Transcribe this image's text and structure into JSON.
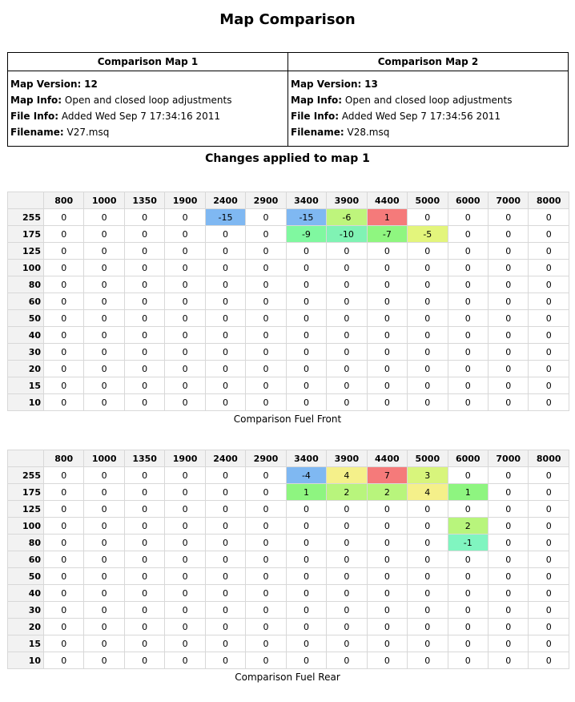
{
  "title": "Map Comparison",
  "info": {
    "headers": [
      "Comparison Map 1",
      "Comparison Map 2"
    ],
    "maps": [
      {
        "version_label": "Map Version:",
        "version": "12",
        "info_label": "Map Info:",
        "info": "Open and closed loop adjustments",
        "file_info_label": "File Info:",
        "file_info": "Added Wed Sep 7 17:34:16 2011",
        "filename_label": "Filename:",
        "filename": "V27.msq"
      },
      {
        "version_label": "Map Version:",
        "version": "13",
        "info_label": "Map Info:",
        "info": "Open and closed loop adjustments",
        "file_info_label": "File Info:",
        "file_info": "Added Wed Sep 7 17:34:56 2011",
        "filename_label": "Filename:",
        "filename": "V28.msq"
      }
    ]
  },
  "changes_heading": "Changes applied to map 1",
  "colors": {
    "-15": "#7fb8f2",
    "-10": "#80f3b4",
    "-9": "#80f8a0",
    "-7": "#8ff680",
    "-6": "#bef57c",
    "-5": "#e3f57c",
    "-4": "#7fb8f2",
    "-1": "#80f5c0",
    "1": "#f57a7a",
    "1r": "#8ef580",
    "2": "#b8f57c",
    "3": "#d8f57c",
    "4": "#f5f08a",
    "7": "#f57a7a"
  },
  "tables": [
    {
      "name": "front",
      "caption": "Comparison Fuel Front",
      "columns": [
        "800",
        "1000",
        "1350",
        "1900",
        "2400",
        "2900",
        "3400",
        "3900",
        "4400",
        "5000",
        "6000",
        "7000",
        "8000"
      ],
      "rows": [
        {
          "label": "255",
          "values": [
            "0",
            "0",
            "0",
            "0",
            "-15",
            "0",
            "-15",
            "-6",
            "1",
            "0",
            "0",
            "0",
            "0"
          ],
          "colors": [
            "",
            "",
            "",
            "",
            "#7fb8f2",
            "",
            "#7fb8f2",
            "#bef57c",
            "#f57a7a",
            "",
            "",
            "",
            ""
          ]
        },
        {
          "label": "175",
          "values": [
            "0",
            "0",
            "0",
            "0",
            "0",
            "0",
            "-9",
            "-10",
            "-7",
            "-5",
            "0",
            "0",
            "0"
          ],
          "colors": [
            "",
            "",
            "",
            "",
            "",
            "",
            "#80f8a0",
            "#80f3b4",
            "#8ff680",
            "#e3f57c",
            "",
            "",
            ""
          ]
        },
        {
          "label": "125",
          "values": [
            "0",
            "0",
            "0",
            "0",
            "0",
            "0",
            "0",
            "0",
            "0",
            "0",
            "0",
            "0",
            "0"
          ],
          "colors": []
        },
        {
          "label": "100",
          "values": [
            "0",
            "0",
            "0",
            "0",
            "0",
            "0",
            "0",
            "0",
            "0",
            "0",
            "0",
            "0",
            "0"
          ],
          "colors": []
        },
        {
          "label": "80",
          "values": [
            "0",
            "0",
            "0",
            "0",
            "0",
            "0",
            "0",
            "0",
            "0",
            "0",
            "0",
            "0",
            "0"
          ],
          "colors": []
        },
        {
          "label": "60",
          "values": [
            "0",
            "0",
            "0",
            "0",
            "0",
            "0",
            "0",
            "0",
            "0",
            "0",
            "0",
            "0",
            "0"
          ],
          "colors": []
        },
        {
          "label": "50",
          "values": [
            "0",
            "0",
            "0",
            "0",
            "0",
            "0",
            "0",
            "0",
            "0",
            "0",
            "0",
            "0",
            "0"
          ],
          "colors": []
        },
        {
          "label": "40",
          "values": [
            "0",
            "0",
            "0",
            "0",
            "0",
            "0",
            "0",
            "0",
            "0",
            "0",
            "0",
            "0",
            "0"
          ],
          "colors": []
        },
        {
          "label": "30",
          "values": [
            "0",
            "0",
            "0",
            "0",
            "0",
            "0",
            "0",
            "0",
            "0",
            "0",
            "0",
            "0",
            "0"
          ],
          "colors": []
        },
        {
          "label": "20",
          "values": [
            "0",
            "0",
            "0",
            "0",
            "0",
            "0",
            "0",
            "0",
            "0",
            "0",
            "0",
            "0",
            "0"
          ],
          "colors": []
        },
        {
          "label": "15",
          "values": [
            "0",
            "0",
            "0",
            "0",
            "0",
            "0",
            "0",
            "0",
            "0",
            "0",
            "0",
            "0",
            "0"
          ],
          "colors": []
        },
        {
          "label": "10",
          "values": [
            "0",
            "0",
            "0",
            "0",
            "0",
            "0",
            "0",
            "0",
            "0",
            "0",
            "0",
            "0",
            "0"
          ],
          "colors": []
        }
      ]
    },
    {
      "name": "rear",
      "caption": "Comparison Fuel Rear",
      "columns": [
        "800",
        "1000",
        "1350",
        "1900",
        "2400",
        "2900",
        "3400",
        "3900",
        "4400",
        "5000",
        "6000",
        "7000",
        "8000"
      ],
      "rows": [
        {
          "label": "255",
          "values": [
            "0",
            "0",
            "0",
            "0",
            "0",
            "0",
            "-4",
            "4",
            "7",
            "3",
            "0",
            "0",
            "0"
          ],
          "colors": [
            "",
            "",
            "",
            "",
            "",
            "",
            "#7fb8f2",
            "#f5f08a",
            "#f57a7a",
            "#d8f57c",
            "",
            "",
            ""
          ]
        },
        {
          "label": "175",
          "values": [
            "0",
            "0",
            "0",
            "0",
            "0",
            "0",
            "1",
            "2",
            "2",
            "4",
            "1",
            "0",
            "0"
          ],
          "colors": [
            "",
            "",
            "",
            "",
            "",
            "",
            "#8ef580",
            "#b8f57c",
            "#b8f57c",
            "#f5f08a",
            "#8ef580",
            "",
            ""
          ]
        },
        {
          "label": "125",
          "values": [
            "0",
            "0",
            "0",
            "0",
            "0",
            "0",
            "0",
            "0",
            "0",
            "0",
            "0",
            "0",
            "0"
          ],
          "colors": []
        },
        {
          "label": "100",
          "values": [
            "0",
            "0",
            "0",
            "0",
            "0",
            "0",
            "0",
            "0",
            "0",
            "0",
            "2",
            "0",
            "0"
          ],
          "colors": [
            "",
            "",
            "",
            "",
            "",
            "",
            "",
            "",
            "",
            "",
            "#b8f57c",
            "",
            ""
          ]
        },
        {
          "label": "80",
          "values": [
            "0",
            "0",
            "0",
            "0",
            "0",
            "0",
            "0",
            "0",
            "0",
            "0",
            "-1",
            "0",
            "0"
          ],
          "colors": [
            "",
            "",
            "",
            "",
            "",
            "",
            "",
            "",
            "",
            "",
            "#80f5c0",
            "",
            ""
          ]
        },
        {
          "label": "60",
          "values": [
            "0",
            "0",
            "0",
            "0",
            "0",
            "0",
            "0",
            "0",
            "0",
            "0",
            "0",
            "0",
            "0"
          ],
          "colors": []
        },
        {
          "label": "50",
          "values": [
            "0",
            "0",
            "0",
            "0",
            "0",
            "0",
            "0",
            "0",
            "0",
            "0",
            "0",
            "0",
            "0"
          ],
          "colors": []
        },
        {
          "label": "40",
          "values": [
            "0",
            "0",
            "0",
            "0",
            "0",
            "0",
            "0",
            "0",
            "0",
            "0",
            "0",
            "0",
            "0"
          ],
          "colors": []
        },
        {
          "label": "30",
          "values": [
            "0",
            "0",
            "0",
            "0",
            "0",
            "0",
            "0",
            "0",
            "0",
            "0",
            "0",
            "0",
            "0"
          ],
          "colors": []
        },
        {
          "label": "20",
          "values": [
            "0",
            "0",
            "0",
            "0",
            "0",
            "0",
            "0",
            "0",
            "0",
            "0",
            "0",
            "0",
            "0"
          ],
          "colors": []
        },
        {
          "label": "15",
          "values": [
            "0",
            "0",
            "0",
            "0",
            "0",
            "0",
            "0",
            "0",
            "0",
            "0",
            "0",
            "0",
            "0"
          ],
          "colors": []
        },
        {
          "label": "10",
          "values": [
            "0",
            "0",
            "0",
            "0",
            "0",
            "0",
            "0",
            "0",
            "0",
            "0",
            "0",
            "0",
            "0"
          ],
          "colors": []
        }
      ]
    }
  ]
}
